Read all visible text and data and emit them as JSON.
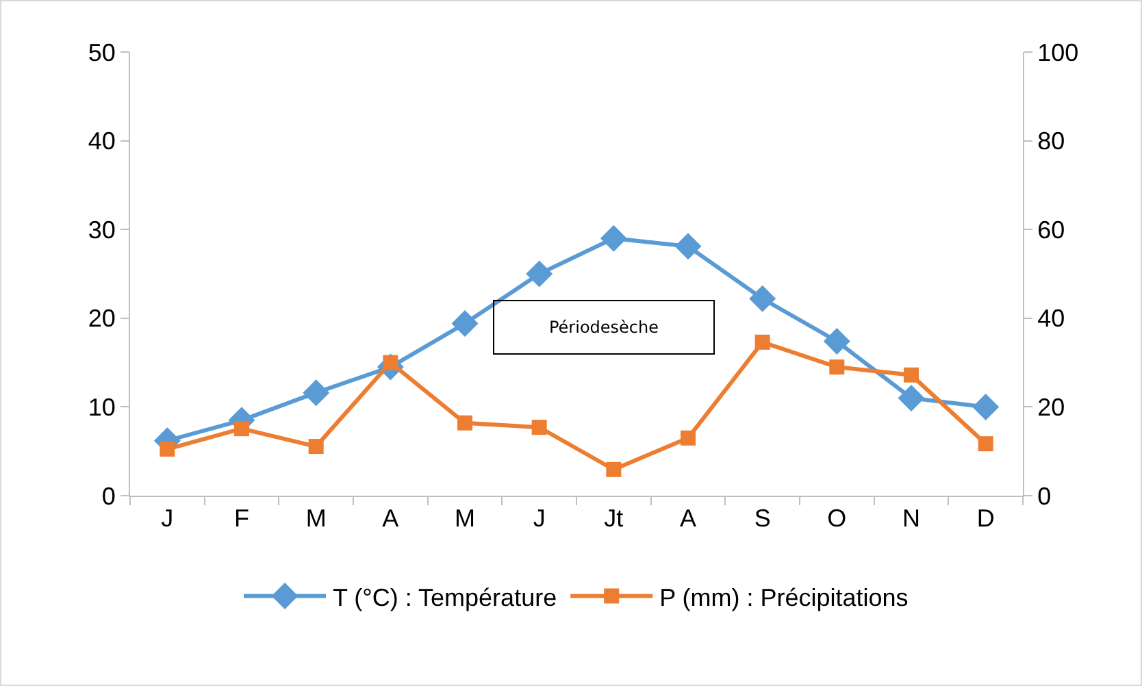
{
  "chart_data": {
    "type": "line",
    "categories": [
      "J",
      "F",
      "M",
      "A",
      "M",
      "J",
      "Jt",
      "A",
      "S",
      "O",
      "N",
      "D"
    ],
    "series": [
      {
        "name": "T (°C) : Température",
        "color": "#5b9bd5",
        "marker": "diamond",
        "values": [
          6.2,
          8.5,
          11.6,
          14.5,
          19.4,
          25,
          29,
          28.1,
          22.2,
          17.4,
          11,
          10
        ]
      },
      {
        "name": "P (mm) : Précipitations",
        "color": "#ed7d31",
        "marker": "square",
        "axis": "y2",
        "values": [
          10.5,
          15.1,
          11.1,
          30,
          16.4,
          15.4,
          5.9,
          13,
          34.6,
          29,
          27.2,
          11.7
        ]
      }
    ],
    "ylim": [
      0,
      50
    ],
    "yticks": [
      0,
      10,
      20,
      30,
      40,
      50
    ],
    "y2lim": [
      0,
      100
    ],
    "y2ticks": [
      0,
      20,
      40,
      60,
      80,
      100
    ],
    "annotations": [
      "Périodesèche"
    ],
    "legend": "bottom",
    "grid": false
  }
}
